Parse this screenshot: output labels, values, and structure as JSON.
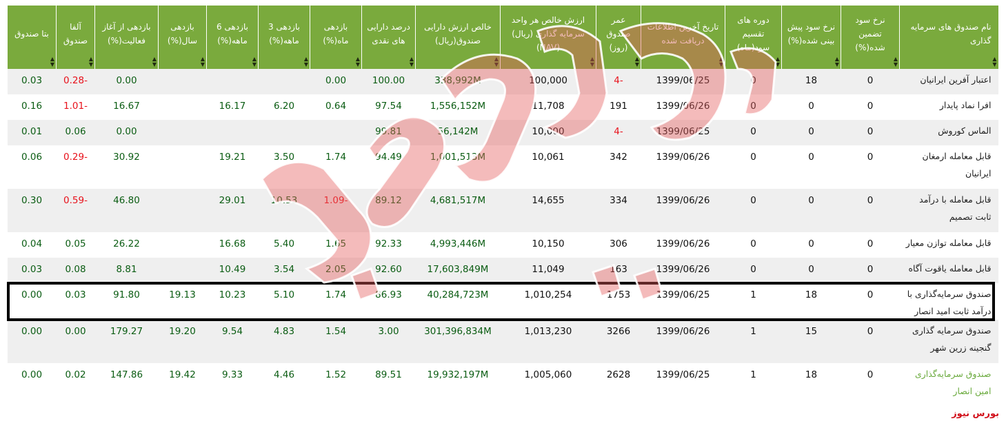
{
  "headers": [
    "نام صندوق های سرمایه گذاری",
    "نرخ سود تضمین شده(%)",
    "نرخ سود پیش بینی شده(%)",
    "دوره های تقسیم سود(ماه)",
    "تاریخ آخرین اطلاعات دریافت شده",
    "عمر صندوق (روز)",
    "ارزش خالص هر واحد سرمایه گذاری (ریال)(NAV)",
    "خالص ارزش دارایی صندوق(ریال)",
    "درصد دارایی های نقدی",
    "بازدهی ماه(%)",
    "بازدهی 3 ماهه(%)",
    "بازدهی 6 ماهه(%)",
    "بازدهی سال(%)",
    "بازدهی از آغاز فعالیت(%)",
    "آلفا صندوق",
    "بتا صندوق"
  ],
  "rows": [
    {
      "name": "اعتبار آفرین ایرانیان",
      "guaranteed": "0",
      "forecast": "18",
      "period": "0",
      "date": "1399/06/25",
      "age": "-4",
      "nav": "100,000",
      "net_assets": "338,992M",
      "cash": "100.00",
      "month": "0.00",
      "m3": "",
      "m6": "",
      "year": "",
      "since": "0.00",
      "alpha": "-0.28",
      "beta": "0.03"
    },
    {
      "name": "افرا نماد پایدار",
      "guaranteed": "0",
      "forecast": "0",
      "period": "0",
      "date": "1399/06/26",
      "age": "191",
      "nav": "11,708",
      "net_assets": "1,556,152M",
      "cash": "97.54",
      "month": "0.64",
      "m3": "6.20",
      "m6": "16.17",
      "year": "",
      "since": "16.67",
      "alpha": "-1.01",
      "beta": "0.16"
    },
    {
      "name": "الماس کوروش",
      "guaranteed": "0",
      "forecast": "0",
      "period": "0",
      "date": "1399/06/25",
      "age": "-4",
      "nav": "10,000",
      "net_assets": "56,142M",
      "cash": "99.81",
      "month": "",
      "m3": "",
      "m6": "",
      "year": "",
      "since": "0.00",
      "alpha": "0.06",
      "beta": "0.01"
    },
    {
      "name": "قابل معامله ارمغان ایرانیان",
      "guaranteed": "0",
      "forecast": "0",
      "period": "0",
      "date": "1399/06/26",
      "age": "342",
      "nav": "10,061",
      "net_assets": "1,001,513M",
      "cash": "94.49",
      "month": "1.74",
      "m3": "3.50",
      "m6": "19.21",
      "year": "",
      "since": "30.92",
      "alpha": "-0.29",
      "beta": "0.06"
    },
    {
      "name": "قابل معامله با درآمد ثابت تصمیم",
      "guaranteed": "0",
      "forecast": "0",
      "period": "0",
      "date": "1399/06/26",
      "age": "334",
      "nav": "14,655",
      "net_assets": "4,681,517M",
      "cash": "89.12",
      "month": "-1.09",
      "m3": "10.53",
      "m6": "29.01",
      "year": "",
      "since": "46.80",
      "alpha": "-0.59",
      "beta": "0.30"
    },
    {
      "name": "قابل معامله توازن معیار",
      "guaranteed": "0",
      "forecast": "0",
      "period": "0",
      "date": "1399/06/26",
      "age": "306",
      "nav": "10,150",
      "net_assets": "4,993,446M",
      "cash": "92.33",
      "month": "1.65",
      "m3": "5.40",
      "m6": "16.68",
      "year": "",
      "since": "26.22",
      "alpha": "0.05",
      "beta": "0.04"
    },
    {
      "name": "قابل معامله یاقوت آگاه",
      "guaranteed": "0",
      "forecast": "0",
      "period": "0",
      "date": "1399/06/26",
      "age": "163",
      "nav": "11,049",
      "net_assets": "17,603,849M",
      "cash": "92.60",
      "month": "2.05",
      "m3": "3.54",
      "m6": "10.49",
      "year": "",
      "since": "8.81",
      "alpha": "0.08",
      "beta": "0.03"
    },
    {
      "name": "صندوق سرمایه‌گذاری با درآمد ثابت امید انصار",
      "guaranteed": "0",
      "forecast": "18",
      "period": "1",
      "date": "1399/06/25",
      "age": "1753",
      "nav": "1,010,254",
      "net_assets": "40,284,723M",
      "cash": "86.93",
      "month": "1.74",
      "m3": "5.10",
      "m6": "10.23",
      "year": "19.13",
      "since": "91.80",
      "alpha": "0.03",
      "beta": "0.00"
    },
    {
      "name": "صندوق سرمایه گذاری گنجینه زرین شهر",
      "guaranteed": "0",
      "forecast": "15",
      "period": "1",
      "date": "1399/06/26",
      "age": "3266",
      "nav": "1,013,230",
      "net_assets": "301,396,834M",
      "cash": "3.00",
      "month": "1.54",
      "m3": "4.83",
      "m6": "9.54",
      "year": "19.20",
      "since": "179.27",
      "alpha": "0.00",
      "beta": "0.00"
    },
    {
      "name": "صندوق سرمایه‌گذاری امین انصار",
      "guaranteed": "0",
      "forecast": "18",
      "period": "1",
      "date": "1399/06/25",
      "age": "2628",
      "nav": "1,005,060",
      "net_assets": "19,932,197M",
      "cash": "89.51",
      "month": "1.52",
      "m3": "4.46",
      "m6": "9.33",
      "year": "19.42",
      "since": "147.86",
      "alpha": "0.02",
      "beta": "0.00"
    }
  ],
  "watermark": "بورس نیوز",
  "footer_brand": "بورس نیوز",
  "colors": {
    "header_bg": "#7aaa3d",
    "positive": "#0a5c12",
    "negative": "#e8111b",
    "watermark": "#e45c5c"
  }
}
